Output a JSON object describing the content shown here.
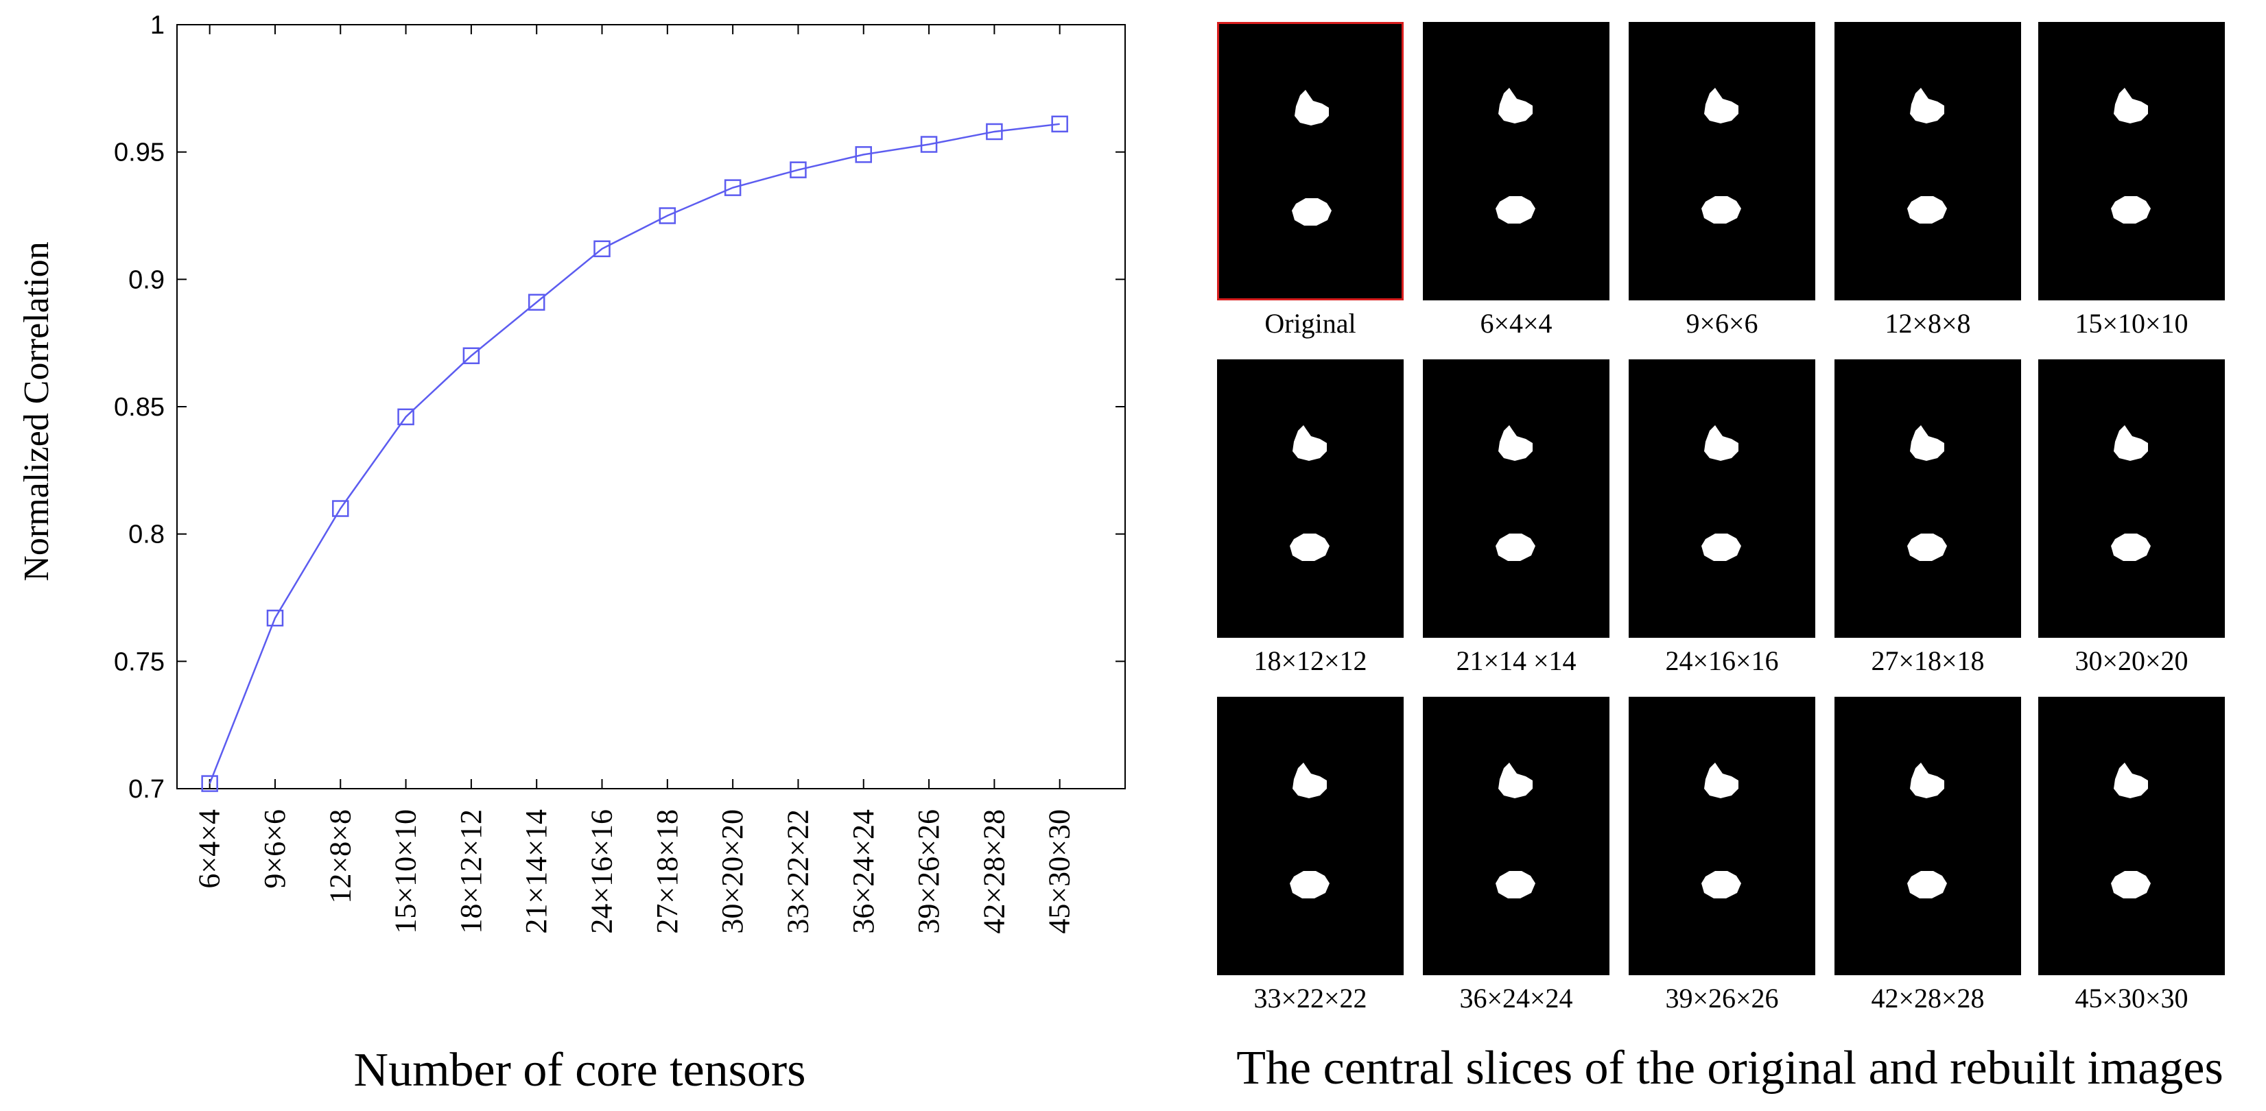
{
  "chart_data": {
    "type": "line",
    "xlabel": "Number of core tensors",
    "ylabel": "Normalized Correlation",
    "categories": [
      "6×4×4",
      "9×6×6",
      "12×8×8",
      "15×10×10",
      "18×12×12",
      "21×14×14",
      "24×16×16",
      "27×18×18",
      "30×20×20",
      "33×22×22",
      "36×24×24",
      "39×26×26",
      "42×28×28",
      "45×30×30"
    ],
    "series": [
      {
        "values": [
          0.702,
          0.767,
          0.81,
          0.846,
          0.87,
          0.891,
          0.912,
          0.925,
          0.936,
          0.943,
          0.949,
          0.953,
          0.958,
          0.961
        ]
      }
    ],
    "ylim": [
      0.7,
      1.0
    ],
    "yticks": [
      "0.7",
      "0.75",
      "0.8",
      "0.85",
      "0.9",
      "0.95",
      "1"
    ],
    "grid": false,
    "marker": "square",
    "line_color": "#5c5cf0"
  },
  "slices": {
    "caption": "The central slices of the original and rebuilt images",
    "items": [
      {
        "label": "Original",
        "original": true
      },
      {
        "label": "6×4×4"
      },
      {
        "label": "9×6×6"
      },
      {
        "label": "12×8×8"
      },
      {
        "label": "15×10×10"
      },
      {
        "label": "18×12×12"
      },
      {
        "label": "21×14 ×14"
      },
      {
        "label": "24×16×16"
      },
      {
        "label": "27×18×18"
      },
      {
        "label": "30×20×20"
      },
      {
        "label": "33×22×22"
      },
      {
        "label": "36×24×24"
      },
      {
        "label": "39×26×26"
      },
      {
        "label": "42×28×28"
      },
      {
        "label": "45×30×30"
      }
    ],
    "frame_color": "#000000",
    "original_border_color": "#d81e1e",
    "blob_color": "#ffffff"
  }
}
